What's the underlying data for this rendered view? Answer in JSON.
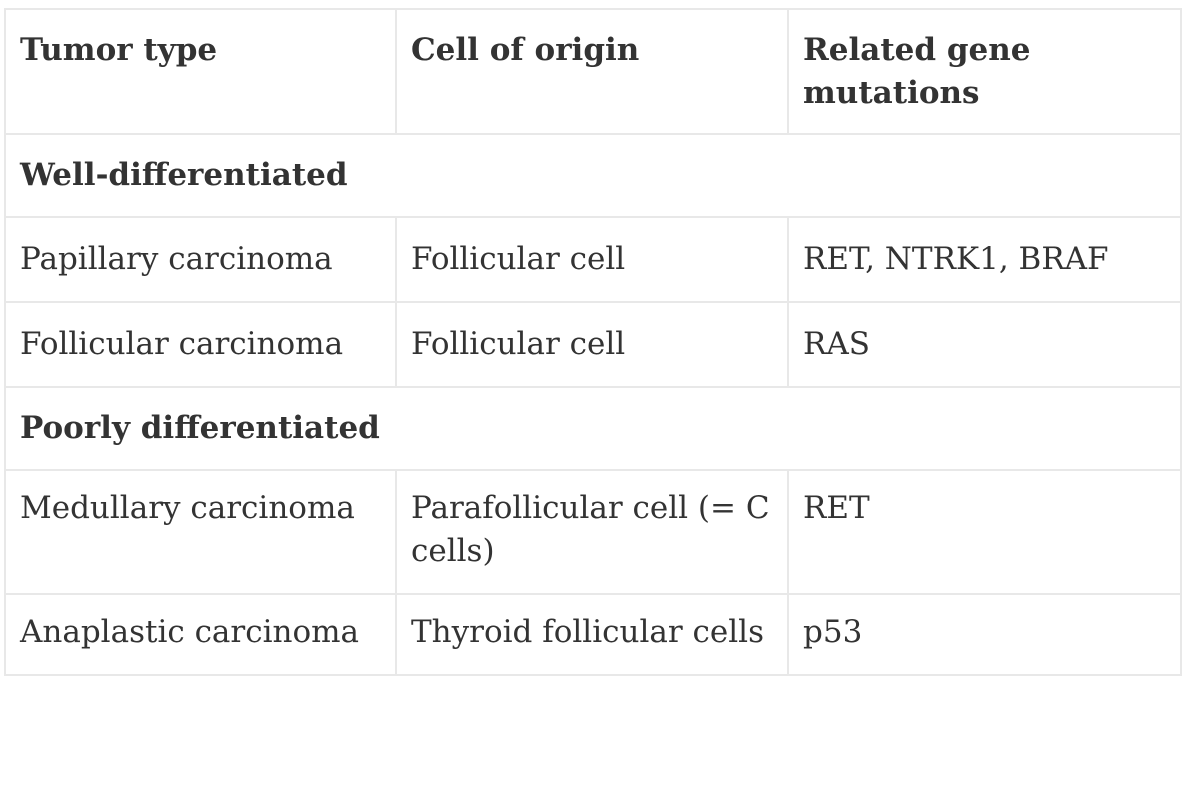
{
  "table": {
    "headers": [
      "Tumor type",
      "Cell of origin",
      "Related gene mutations"
    ],
    "rows": [
      {
        "type": "section",
        "label": "Well-differentiated"
      },
      {
        "type": "data",
        "cells": [
          "Papillary carcinoma",
          "Follicular cell",
          "RET, NTRK1, BRAF"
        ]
      },
      {
        "type": "data",
        "cells": [
          "Follicular carcinoma",
          "Follicular cell",
          "RAS"
        ]
      },
      {
        "type": "section",
        "label": "Poorly differentiated"
      },
      {
        "type": "data",
        "cells": [
          "Medullary carcinoma",
          "Parafollicular cell (= C cells)",
          "RET"
        ]
      },
      {
        "type": "data",
        "cells": [
          "Anaplastic carcinoma",
          "Thyroid follicular cells",
          "p53"
        ]
      }
    ]
  }
}
